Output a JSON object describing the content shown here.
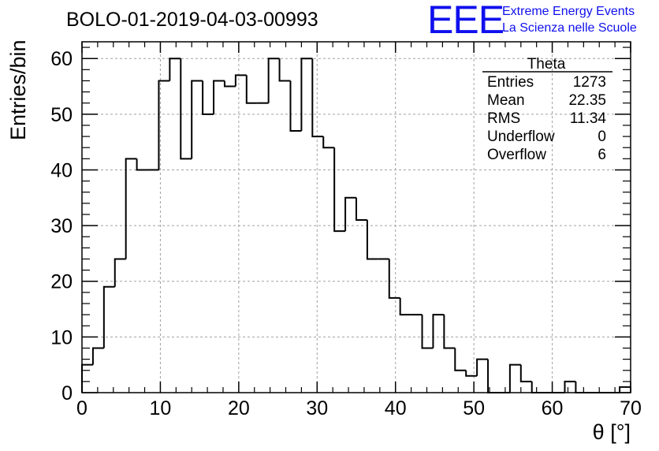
{
  "chart_data": {
    "type": "histogram",
    "title": "BOLO-01-2019-04-03-00993",
    "xlabel": "θ [°]",
    "ylabel": "Entries/bin",
    "xlim": [
      0,
      70
    ],
    "ylim": [
      0,
      63
    ],
    "grid": true,
    "xticks": [
      "0",
      "10",
      "20",
      "30",
      "40",
      "50",
      "60",
      "70"
    ],
    "yticks": [
      "0",
      "10",
      "20",
      "30",
      "40",
      "50",
      "60"
    ],
    "bin_width": 1.4,
    "bin_edges_start": 0,
    "values": [
      5,
      8,
      19,
      24,
      42,
      40,
      40,
      56,
      60,
      42,
      56,
      50,
      56,
      55,
      57,
      52,
      52,
      60,
      56,
      47,
      60,
      46,
      44,
      29,
      35,
      31,
      24,
      24,
      17,
      14,
      14,
      8,
      14,
      8,
      4,
      3,
      6,
      0,
      0,
      5,
      2,
      0,
      0,
      0,
      2,
      0,
      0,
      0,
      0,
      1
    ],
    "stats_box": {
      "name": "Theta",
      "position": "top-right",
      "rows": [
        {
          "label": "Entries",
          "value": "1273"
        },
        {
          "label": "Mean",
          "value": "22.35"
        },
        {
          "label": "RMS",
          "value": "11.34"
        },
        {
          "label": "Underflow",
          "value": "0"
        },
        {
          "label": "Overflow",
          "value": "6"
        }
      ]
    }
  },
  "branding": {
    "logo": "EEE",
    "line1": "Extreme Energy Events",
    "line2": "La Scienza nelle Scuole",
    "color": "#1010ee"
  }
}
